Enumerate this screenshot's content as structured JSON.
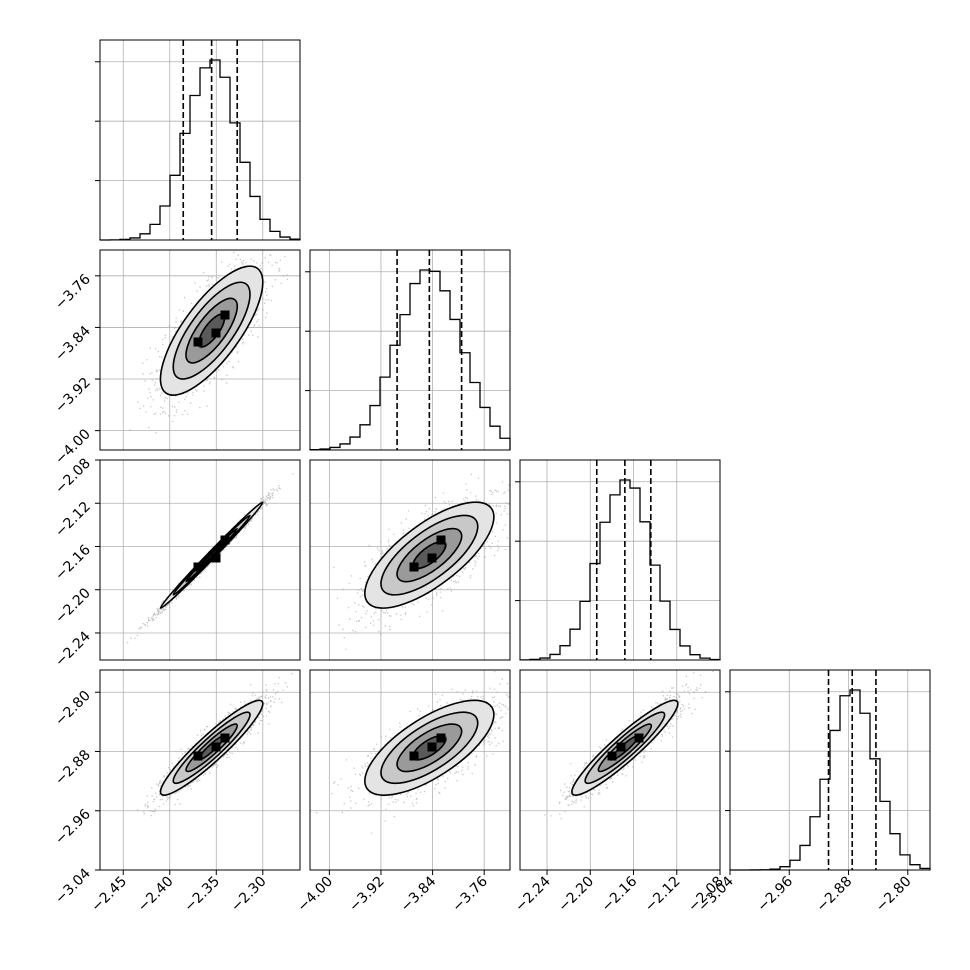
{
  "chart_data": {
    "type": "corner",
    "title": "",
    "grid": true,
    "variables": [
      {
        "index": 0,
        "range": [
          -2.475,
          -2.26
        ],
        "mean": -2.355,
        "sigma": 0.0275,
        "quantiles": [
          -2.3855,
          -2.355,
          -2.3275
        ],
        "ticks": [
          -2.45,
          -2.4,
          -2.35,
          -2.3
        ],
        "tick_labels": [
          "−2.45",
          "−2.40",
          "−2.35",
          "−2.30"
        ]
      },
      {
        "index": 1,
        "range": [
          -4.03,
          -3.72
        ],
        "mean": -3.845,
        "sigma": 0.05,
        "quantiles": [
          -3.895,
          -3.845,
          -3.795
        ],
        "ticks": [
          -4.0,
          -3.92,
          -3.84,
          -3.76
        ],
        "tick_labels": [
          "−4.00",
          "−3.92",
          "−3.84",
          "−3.76"
        ]
      },
      {
        "index": 2,
        "range": [
          -2.265,
          -2.08
        ],
        "mean": -2.168,
        "sigma": 0.0245,
        "quantiles": [
          -2.194,
          -2.168,
          -2.144
        ],
        "ticks": [
          -2.24,
          -2.2,
          -2.16,
          -2.12,
          -2.08
        ],
        "tick_labels": [
          "−2.24",
          "−2.20",
          "−2.16",
          "−2.12",
          "−2.08"
        ]
      },
      {
        "index": 3,
        "range": [
          -3.04,
          -2.77
        ],
        "mean": -2.875,
        "sigma": 0.032,
        "quantiles": [
          -2.907,
          -2.875,
          -2.843
        ],
        "ticks": [
          -3.04,
          -2.96,
          -2.88,
          -2.8
        ],
        "tick_labels": [
          "−3.04",
          "−2.96",
          "−2.88",
          "−2.80"
        ]
      }
    ],
    "correlations": [
      {
        "pair": [
          0,
          1
        ],
        "rho": 0.75
      },
      {
        "pair": [
          0,
          2
        ],
        "rho": 0.995
      },
      {
        "pair": [
          1,
          2
        ],
        "rho": 0.72
      },
      {
        "pair": [
          0,
          3
        ],
        "rho": 0.93
      },
      {
        "pair": [
          1,
          3
        ],
        "rho": 0.7
      },
      {
        "pair": [
          2,
          3
        ],
        "rho": 0.93
      }
    ],
    "contour_sigma_levels": [
      0.5,
      1.0,
      1.5,
      2.0
    ],
    "histogram_bins": 20,
    "scatter_color": "#9a9a9a",
    "density_color": "#000000"
  }
}
